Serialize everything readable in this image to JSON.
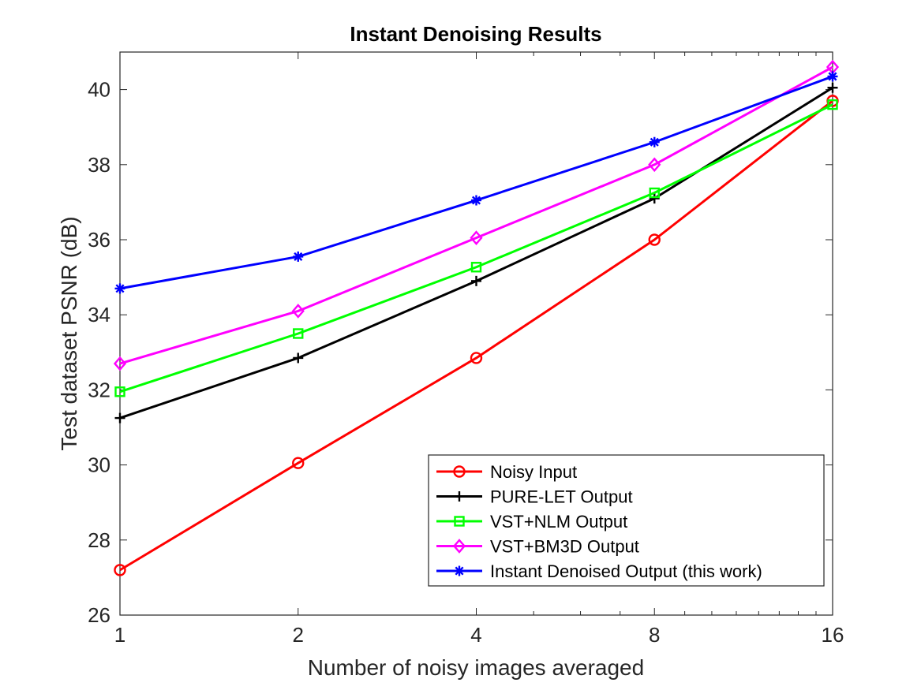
{
  "chart_data": {
    "type": "line",
    "title": "Instant Denoising Results",
    "xlabel": "Number of noisy images averaged",
    "ylabel": "Test dataset PSNR (dB)",
    "x_scale": "log2",
    "x": [
      1,
      2,
      4,
      8,
      16
    ],
    "x_tick_labels": [
      "1",
      "2",
      "4",
      "8",
      "16"
    ],
    "ylim": [
      26,
      41
    ],
    "y_ticks": [
      26,
      28,
      30,
      32,
      34,
      36,
      38,
      40
    ],
    "y_tick_labels": [
      "26",
      "28",
      "30",
      "32",
      "34",
      "36",
      "38",
      "40"
    ],
    "grid": false,
    "legend_position": "bottom-right",
    "series": [
      {
        "name": "Noisy Input",
        "values": [
          27.2,
          30.05,
          32.85,
          36.0,
          39.7
        ],
        "color": "#ff0000",
        "marker": "circle"
      },
      {
        "name": "PURE-LET Output",
        "values": [
          31.25,
          32.85,
          34.9,
          37.1,
          40.05
        ],
        "color": "#000000",
        "marker": "plus"
      },
      {
        "name": "VST+NLM Output",
        "values": [
          31.95,
          33.5,
          35.27,
          37.25,
          39.6
        ],
        "color": "#00ff00",
        "marker": "square"
      },
      {
        "name": "VST+BM3D Output",
        "values": [
          32.7,
          34.1,
          36.05,
          38.0,
          40.6
        ],
        "color": "#ff00ff",
        "marker": "diamond"
      },
      {
        "name": "Instant Denoised Output (this work)",
        "values": [
          34.7,
          35.55,
          37.05,
          38.6,
          40.35
        ],
        "color": "#0000ff",
        "marker": "asterisk"
      }
    ]
  }
}
